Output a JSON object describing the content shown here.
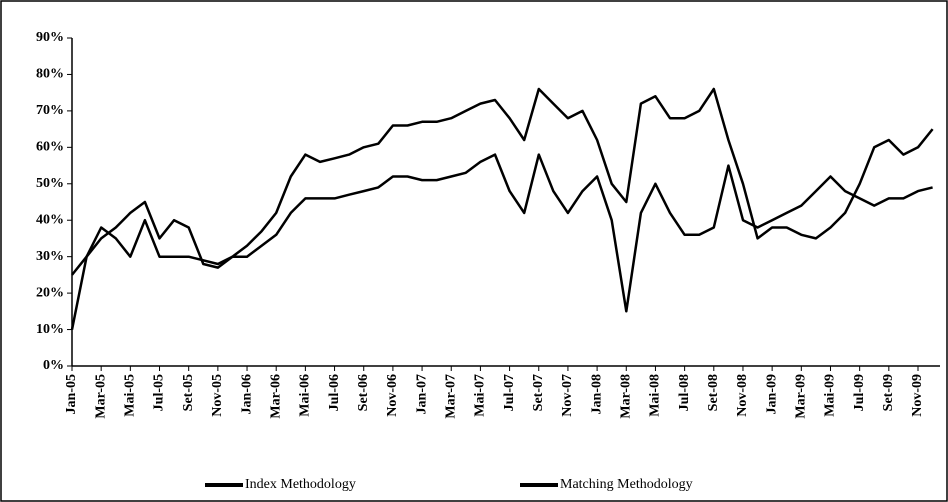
{
  "chart_data": {
    "type": "line",
    "categories": [
      "Jan-05",
      null,
      "Mar-05",
      null,
      "Mai-05",
      null,
      "Jul-05",
      null,
      "Set-05",
      null,
      "Nov-05",
      null,
      "Jan-06",
      null,
      "Mar-06",
      null,
      "Mai-06",
      null,
      "Jul-06",
      null,
      "Set-06",
      null,
      "Nov-06",
      null,
      "Jan-07",
      null,
      "Mar-07",
      null,
      "Mai-07",
      null,
      "Jul-07",
      null,
      "Set-07",
      null,
      "Nov-07",
      null,
      "Jan-08",
      null,
      "Mar-08",
      null,
      "Mai-08",
      null,
      "Jul-08",
      null,
      "Set-08",
      null,
      "Nov-08",
      null,
      "Jan-09",
      null,
      "Mar-09",
      null,
      "Mai-09",
      null,
      "Jul-09",
      null,
      "Set-09",
      null,
      "Nov-09",
      null
    ],
    "series": [
      {
        "name": "Index Methodology",
        "color": "#000000",
        "values": [
          25,
          30,
          38,
          35,
          30,
          40,
          30,
          30,
          30,
          29,
          28,
          30,
          33,
          37,
          42,
          52,
          58,
          56,
          57,
          58,
          60,
          61,
          66,
          66,
          67,
          67,
          68,
          70,
          72,
          73,
          68,
          62,
          76,
          72,
          68,
          70,
          62,
          50,
          45,
          72,
          74,
          68,
          68,
          70,
          76,
          62,
          50,
          35,
          38,
          38,
          36,
          35,
          38,
          42,
          50,
          60,
          62,
          58,
          60,
          65
        ]
      },
      {
        "name": "Matching Methodology",
        "color": "#000000",
        "values": [
          10,
          30,
          35,
          38,
          42,
          45,
          35,
          40,
          38,
          28,
          27,
          30,
          30,
          33,
          36,
          42,
          46,
          46,
          46,
          47,
          48,
          49,
          52,
          52,
          51,
          51,
          52,
          53,
          56,
          58,
          48,
          42,
          58,
          48,
          42,
          48,
          52,
          40,
          15,
          42,
          50,
          42,
          36,
          36,
          38,
          55,
          40,
          38,
          40,
          42,
          44,
          48,
          52,
          48,
          46,
          44,
          46,
          46,
          48,
          49
        ]
      }
    ],
    "ylim": [
      0,
      90
    ],
    "yticks": [
      {
        "value": 0,
        "label": "0%"
      },
      {
        "value": 10,
        "label": "10%"
      },
      {
        "value": 20,
        "label": "20%"
      },
      {
        "value": 30,
        "label": "30%"
      },
      {
        "value": 40,
        "label": "40%"
      },
      {
        "value": 50,
        "label": "50%"
      },
      {
        "value": 60,
        "label": "60%"
      },
      {
        "value": 70,
        "label": "70%"
      },
      {
        "value": 80,
        "label": "80%"
      },
      {
        "value": 90,
        "label": "90%"
      }
    ],
    "grid": false,
    "legend": "bottom"
  }
}
